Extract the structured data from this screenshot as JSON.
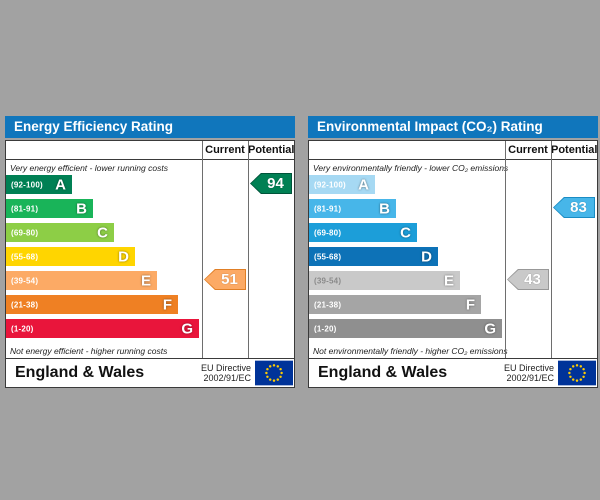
{
  "page": {
    "background": "#a2a2a2"
  },
  "chart_data": [
    {
      "type": "bar",
      "title": "Energy Efficiency Rating",
      "categories": [
        "A (92-100)",
        "B (81-91)",
        "C (69-80)",
        "D (55-68)",
        "E (39-54)",
        "F (21-38)",
        "G (1-20)"
      ],
      "current": 51,
      "current_band": "E",
      "potential": 94,
      "potential_band": "A",
      "xlabel": "",
      "ylabel": "",
      "legend": [
        "Current",
        "Potential"
      ],
      "footer": "England & Wales, EU Directive 2002/91/EC"
    },
    {
      "type": "bar",
      "title": "Environmental Impact (CO₂) Rating",
      "categories": [
        "A (92-100)",
        "B (81-91)",
        "C (69-80)",
        "D (55-68)",
        "E (39-54)",
        "F (21-38)",
        "G (1-20)"
      ],
      "current": 43,
      "current_band": "E",
      "potential": 83,
      "potential_band": "B",
      "xlabel": "",
      "ylabel": "",
      "legend": [
        "Current",
        "Potential"
      ],
      "footer": "England & Wales, EU Directive 2002/91/EC"
    }
  ],
  "charts": [
    {
      "title": "Energy Efficiency Rating",
      "columns": {
        "current": "Current",
        "potential": "Potential"
      },
      "top_note": "Very energy efficient - lower running costs",
      "bottom_note": "Not energy efficient - higher running costs",
      "bands": [
        {
          "letter": "A",
          "range": "(92-100)",
          "color": "#008054",
          "width": 66
        },
        {
          "letter": "B",
          "range": "(81-91)",
          "color": "#19b459",
          "width": 87
        },
        {
          "letter": "C",
          "range": "(69-80)",
          "color": "#8dce46",
          "width": 108
        },
        {
          "letter": "D",
          "range": "(55-68)",
          "color": "#ffd500",
          "width": 129
        },
        {
          "letter": "E",
          "range": "(39-54)",
          "color": "#fcaa65",
          "width": 151
        },
        {
          "letter": "F",
          "range": "(21-38)",
          "color": "#ef8023",
          "width": 172
        },
        {
          "letter": "G",
          "range": "(1-20)",
          "color": "#e9153b",
          "width": 193
        }
      ],
      "current": {
        "value": "51",
        "band": "E",
        "fill": "#fcaa65",
        "border": "#e07f26"
      },
      "potential": {
        "value": "94",
        "band": "A",
        "fill": "#008054",
        "border": "#00543a"
      },
      "footer": {
        "region": "England & Wales",
        "directive_line1": "EU Directive",
        "directive_line2": "2002/91/EC",
        "flag_colors": {
          "field": "#003399",
          "stars": "#ffcc00"
        }
      }
    },
    {
      "title": "Environmental Impact (CO₂) Rating",
      "columns": {
        "current": "Current",
        "potential": "Potential"
      },
      "top_note": "Very environmentally friendly - lower CO₂ emissions",
      "bottom_note": "Not environmentally friendly - higher CO₂ emissions",
      "bands": [
        {
          "letter": "A",
          "range": "(92-100)",
          "color": "#a6d9f3",
          "width": 66
        },
        {
          "letter": "B",
          "range": "(81-91)",
          "color": "#47b6e9",
          "width": 87
        },
        {
          "letter": "C",
          "range": "(69-80)",
          "color": "#1c9ed9",
          "width": 108
        },
        {
          "letter": "D",
          "range": "(55-68)",
          "color": "#0d72b7",
          "width": 129
        },
        {
          "letter": "E",
          "range": "(39-54)",
          "color": "#c9c9c9",
          "width": 151,
          "label_color": "#8a8a8a"
        },
        {
          "letter": "F",
          "range": "(21-38)",
          "color": "#a5a5a5",
          "width": 172
        },
        {
          "letter": "G",
          "range": "(1-20)",
          "color": "#8f8f8f",
          "width": 193
        }
      ],
      "current": {
        "value": "43",
        "band": "E",
        "fill": "#c9c9c9",
        "border": "#989898"
      },
      "potential": {
        "value": "83",
        "band": "B",
        "fill": "#47b6e9",
        "border": "#1a8cc4"
      },
      "footer": {
        "region": "England & Wales",
        "directive_line1": "EU Directive",
        "directive_line2": "2002/91/EC",
        "flag_colors": {
          "field": "#003399",
          "stars": "#ffcc00"
        }
      }
    }
  ]
}
